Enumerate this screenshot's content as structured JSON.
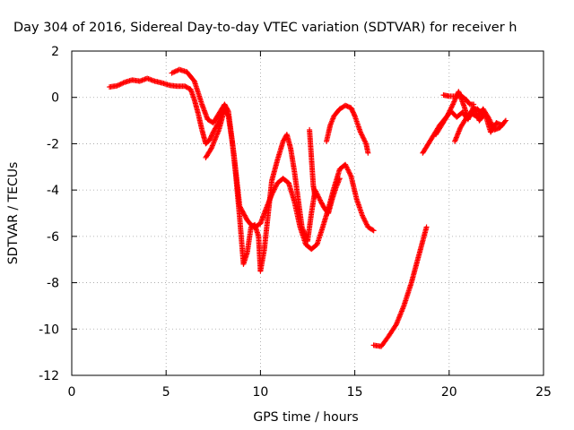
{
  "chart_data": {
    "type": "scatter",
    "title": "Day 304 of 2016, Sidereal Day-to-day VTEC variation (SDTVAR) for receiver h",
    "xlabel": "GPS time / hours",
    "ylabel": "SDTVAR / TECUs",
    "xlim": [
      0,
      25
    ],
    "ylim": [
      -12,
      2
    ],
    "x_ticks": [
      0,
      5,
      10,
      15,
      20,
      25
    ],
    "y_ticks": [
      -12,
      -10,
      -8,
      -6,
      -4,
      -2,
      0,
      2
    ],
    "grid": true,
    "marker": "plus",
    "color": "#ff0000",
    "series": [
      {
        "points": [
          [
            2.0,
            0.45
          ],
          [
            2.4,
            0.5
          ],
          [
            2.8,
            0.65
          ],
          [
            3.2,
            0.75
          ],
          [
            3.6,
            0.7
          ],
          [
            4.0,
            0.82
          ],
          [
            4.4,
            0.7
          ],
          [
            4.8,
            0.62
          ],
          [
            5.2,
            0.52
          ],
          [
            5.6,
            0.48
          ],
          [
            6.0,
            0.48
          ],
          [
            6.3,
            0.35
          ],
          [
            6.5,
            -0.1
          ],
          [
            6.7,
            -0.7
          ],
          [
            6.9,
            -1.4
          ],
          [
            7.1,
            -2.0
          ],
          [
            7.3,
            -1.85
          ],
          [
            7.5,
            -1.5
          ],
          [
            7.7,
            -1.2
          ],
          [
            7.9,
            -0.8
          ],
          [
            8.0,
            -0.6
          ]
        ]
      },
      {
        "points": [
          [
            5.3,
            1.05
          ],
          [
            5.7,
            1.2
          ],
          [
            6.1,
            1.1
          ],
          [
            6.5,
            0.7
          ],
          [
            6.9,
            -0.3
          ],
          [
            7.2,
            -0.95
          ],
          [
            7.5,
            -1.1
          ],
          [
            7.8,
            -0.7
          ],
          [
            8.1,
            -0.3
          ],
          [
            8.3,
            -0.6
          ],
          [
            8.6,
            -2.5
          ],
          [
            8.9,
            -4.7
          ],
          [
            9.1,
            -5.0
          ],
          [
            9.3,
            -5.3
          ],
          [
            9.5,
            -5.5
          ],
          [
            9.7,
            -5.6
          ],
          [
            10.0,
            -5.45
          ],
          [
            10.3,
            -4.8
          ],
          [
            10.6,
            -4.2
          ],
          [
            10.9,
            -3.7
          ],
          [
            11.2,
            -3.5
          ],
          [
            11.5,
            -3.7
          ],
          [
            11.8,
            -4.5
          ],
          [
            12.1,
            -5.6
          ],
          [
            12.4,
            -6.35
          ],
          [
            12.7,
            -6.55
          ],
          [
            13.0,
            -6.35
          ],
          [
            13.3,
            -5.6
          ],
          [
            13.6,
            -4.8
          ],
          [
            13.9,
            -3.9
          ],
          [
            14.2,
            -3.1
          ],
          [
            14.5,
            -2.9
          ],
          [
            14.8,
            -3.4
          ],
          [
            15.1,
            -4.4
          ],
          [
            15.4,
            -5.1
          ],
          [
            15.7,
            -5.6
          ],
          [
            16.0,
            -5.75
          ]
        ]
      },
      {
        "points": [
          [
            7.1,
            -2.6
          ],
          [
            7.4,
            -2.2
          ],
          [
            7.8,
            -1.4
          ],
          [
            8.1,
            -0.5
          ],
          [
            8.3,
            -0.8
          ],
          [
            8.5,
            -1.9
          ],
          [
            8.7,
            -3.4
          ],
          [
            8.9,
            -5.2
          ],
          [
            9.1,
            -7.2
          ],
          [
            9.3,
            -6.7
          ],
          [
            9.5,
            -5.6
          ],
          [
            9.7,
            -5.5
          ],
          [
            9.9,
            -6.0
          ],
          [
            10.0,
            -7.5
          ],
          [
            10.2,
            -6.6
          ],
          [
            10.4,
            -5.1
          ],
          [
            10.6,
            -3.6
          ],
          [
            10.9,
            -2.7
          ],
          [
            11.2,
            -1.9
          ],
          [
            11.4,
            -1.6
          ],
          [
            11.6,
            -2.2
          ],
          [
            11.8,
            -3.2
          ],
          [
            12.0,
            -4.4
          ],
          [
            12.2,
            -5.6
          ],
          [
            12.5,
            -6.2
          ],
          [
            12.7,
            -5.0
          ],
          [
            12.9,
            -4.0
          ],
          [
            13.2,
            -4.5
          ],
          [
            13.4,
            -4.8
          ],
          [
            13.6,
            -5.0
          ],
          [
            13.8,
            -4.4
          ],
          [
            14.0,
            -3.9
          ],
          [
            14.2,
            -3.5
          ]
        ]
      },
      {
        "points": [
          [
            12.6,
            -1.4
          ],
          [
            12.7,
            -2.6
          ],
          [
            12.8,
            -3.8
          ],
          [
            12.9,
            -4.3
          ]
        ]
      },
      {
        "points": [
          [
            13.5,
            -1.9
          ],
          [
            13.7,
            -1.2
          ],
          [
            13.9,
            -0.8
          ],
          [
            14.2,
            -0.5
          ],
          [
            14.5,
            -0.35
          ],
          [
            14.8,
            -0.45
          ],
          [
            15.0,
            -0.8
          ],
          [
            15.3,
            -1.5
          ],
          [
            15.6,
            -2.0
          ],
          [
            15.7,
            -2.4
          ]
        ]
      },
      {
        "points": [
          [
            16.0,
            -10.7
          ],
          [
            16.4,
            -10.75
          ],
          [
            16.8,
            -10.3
          ],
          [
            17.2,
            -9.8
          ],
          [
            17.6,
            -9.0
          ],
          [
            18.0,
            -8.0
          ],
          [
            18.4,
            -6.8
          ],
          [
            18.8,
            -5.6
          ]
        ]
      },
      {
        "points": [
          [
            18.6,
            -2.4
          ],
          [
            18.9,
            -2.0
          ],
          [
            19.2,
            -1.6
          ],
          [
            19.5,
            -1.2
          ],
          [
            19.8,
            -0.9
          ],
          [
            20.1,
            -0.6
          ],
          [
            20.4,
            -0.85
          ],
          [
            20.7,
            -0.65
          ],
          [
            21.0,
            -0.95
          ],
          [
            21.3,
            -0.4
          ],
          [
            21.6,
            -1.0
          ],
          [
            21.9,
            -0.7
          ],
          [
            22.2,
            -1.5
          ],
          [
            22.5,
            -1.1
          ],
          [
            22.8,
            -1.2
          ]
        ]
      },
      {
        "points": [
          [
            19.3,
            -1.6
          ],
          [
            19.6,
            -1.2
          ],
          [
            19.9,
            -0.8
          ],
          [
            20.2,
            -0.3
          ],
          [
            20.5,
            0.25
          ],
          [
            20.8,
            -0.4
          ],
          [
            21.0,
            -0.9
          ],
          [
            21.2,
            -0.7
          ],
          [
            21.5,
            -0.85
          ],
          [
            21.8,
            -0.5
          ],
          [
            22.1,
            -0.9
          ],
          [
            22.4,
            -1.4
          ],
          [
            22.7,
            -1.3
          ],
          [
            23.0,
            -1.0
          ]
        ]
      },
      {
        "points": [
          [
            19.7,
            0.1
          ],
          [
            20.0,
            0.05
          ],
          [
            20.3,
            0.05
          ],
          [
            20.6,
            0.1
          ],
          [
            20.9,
            -0.1
          ],
          [
            21.1,
            -0.3
          ],
          [
            21.3,
            -0.3
          ]
        ]
      },
      {
        "points": [
          [
            20.3,
            -1.9
          ],
          [
            20.6,
            -1.3
          ],
          [
            20.9,
            -0.9
          ],
          [
            21.2,
            -0.6
          ],
          [
            21.5,
            -0.5
          ],
          [
            21.8,
            -0.75
          ]
        ]
      }
    ]
  }
}
